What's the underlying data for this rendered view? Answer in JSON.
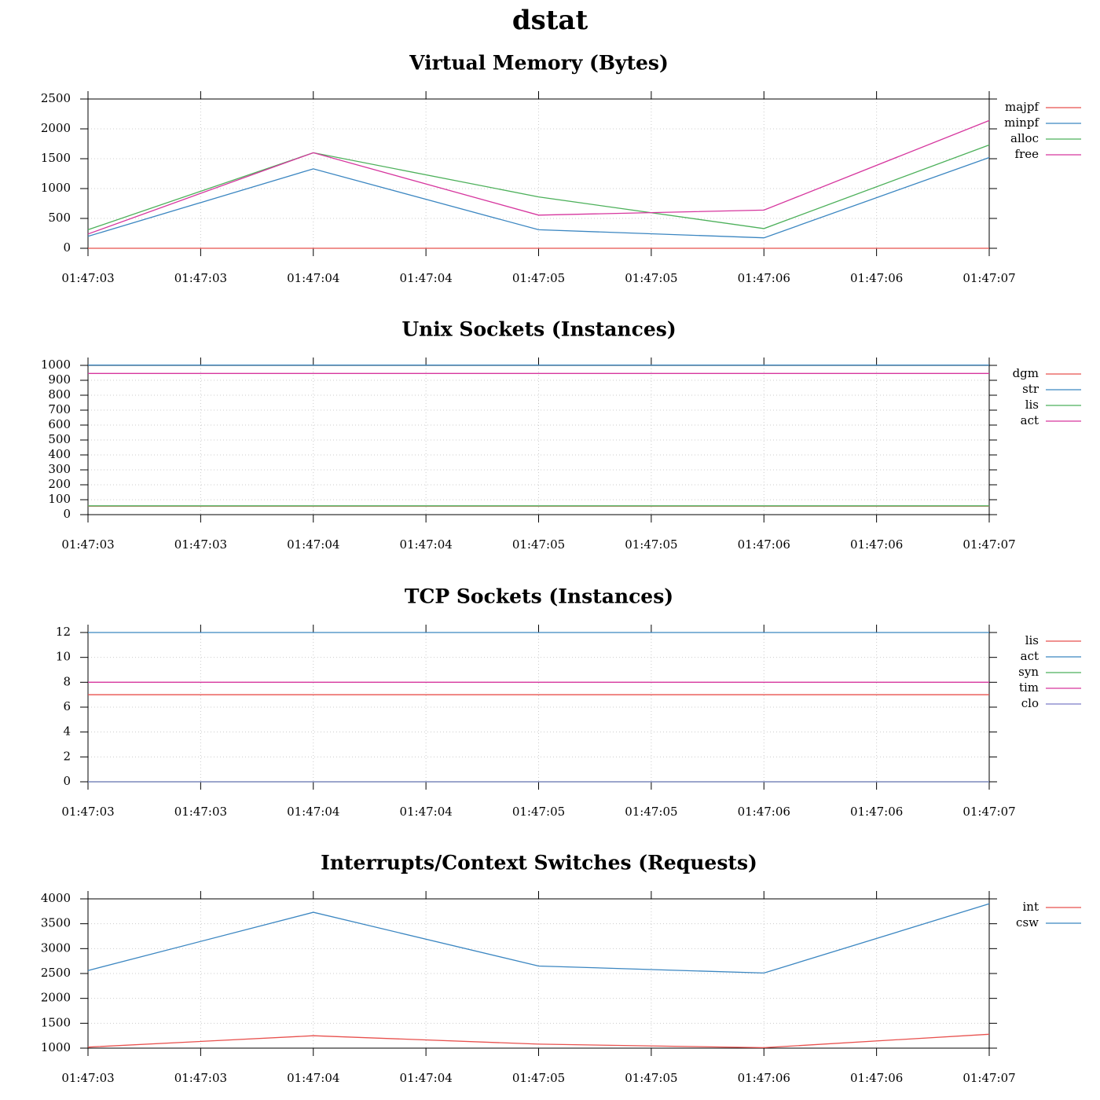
{
  "title": "dstat",
  "time_labels": [
    "01:47:03",
    "01:47:03",
    "01:47:04",
    "01:47:04",
    "01:47:05",
    "01:47:05",
    "01:47:06",
    "01:47:06",
    "01:47:07"
  ],
  "chart_data": [
    {
      "type": "line",
      "title": "Virtual Memory (Bytes)",
      "x": [
        "01:47:03",
        "01:47:04",
        "01:47:05",
        "01:47:06",
        "01:47:07"
      ],
      "ylim": [
        0,
        2500
      ],
      "yticks": [
        0,
        500,
        1000,
        1500,
        2000,
        2500
      ],
      "grid": true,
      "legend_position": "right",
      "series": [
        {
          "name": "majpf",
          "color": "#e8514e",
          "values": [
            0,
            0,
            0,
            0,
            0
          ]
        },
        {
          "name": "minpf",
          "color": "#3b86c1",
          "values": [
            200,
            1330,
            310,
            175,
            1520
          ]
        },
        {
          "name": "alloc",
          "color": "#4cb05a",
          "values": [
            310,
            1600,
            860,
            330,
            1730
          ]
        },
        {
          "name": "free",
          "color": "#d6369e",
          "values": [
            240,
            1600,
            555,
            640,
            2140
          ]
        }
      ]
    },
    {
      "type": "line",
      "title": "Unix Sockets (Instances)",
      "x": [
        "01:47:03",
        "01:47:04",
        "01:47:05",
        "01:47:06",
        "01:47:07"
      ],
      "ylim": [
        0,
        1000
      ],
      "yticks": [
        0,
        100,
        200,
        300,
        400,
        500,
        600,
        700,
        800,
        900,
        1000
      ],
      "grid": true,
      "legend_position": "right",
      "series": [
        {
          "name": "dgm",
          "color": "#e8514e",
          "values": [
            57,
            57,
            57,
            57,
            57
          ]
        },
        {
          "name": "str",
          "color": "#3b86c1",
          "values": [
            1002,
            1002,
            1002,
            1002,
            1002
          ]
        },
        {
          "name": "lis",
          "color": "#4cb05a",
          "values": [
            59,
            59,
            59,
            59,
            59
          ]
        },
        {
          "name": "act",
          "color": "#d6369e",
          "values": [
            946,
            946,
            946,
            946,
            946
          ]
        }
      ]
    },
    {
      "type": "line",
      "title": "TCP Sockets (Instances)",
      "x": [
        "01:47:03",
        "01:47:04",
        "01:47:05",
        "01:47:06",
        "01:47:07"
      ],
      "ylim": [
        0,
        12
      ],
      "yticks": [
        0,
        2,
        4,
        6,
        8,
        10,
        12
      ],
      "grid": true,
      "legend_position": "right",
      "series": [
        {
          "name": "lis",
          "color": "#e8514e",
          "values": [
            7,
            7,
            7,
            7,
            7
          ]
        },
        {
          "name": "act",
          "color": "#3b86c1",
          "values": [
            12,
            12,
            12,
            12,
            12
          ]
        },
        {
          "name": "syn",
          "color": "#4cb05a",
          "values": [
            0,
            0,
            0,
            0,
            0
          ]
        },
        {
          "name": "tim",
          "color": "#d6369e",
          "values": [
            8,
            8,
            8,
            8,
            8
          ]
        },
        {
          "name": "clo",
          "color": "#7c7cc8",
          "values": [
            0,
            0,
            0,
            0,
            0
          ]
        }
      ]
    },
    {
      "type": "line",
      "title": "Interrupts/Context Switches (Requests)",
      "x": [
        "01:47:03",
        "01:47:04",
        "01:47:05",
        "01:47:06",
        "01:47:07"
      ],
      "ylim": [
        1000,
        4000
      ],
      "yticks": [
        1000,
        1500,
        2000,
        2500,
        3000,
        3500,
        4000
      ],
      "grid": true,
      "legend_position": "right",
      "series": [
        {
          "name": "int",
          "color": "#e8514e",
          "values": [
            1020,
            1250,
            1080,
            1010,
            1280
          ]
        },
        {
          "name": "csw",
          "color": "#3b86c1",
          "values": [
            2560,
            3730,
            2650,
            2510,
            3900
          ]
        }
      ]
    }
  ]
}
